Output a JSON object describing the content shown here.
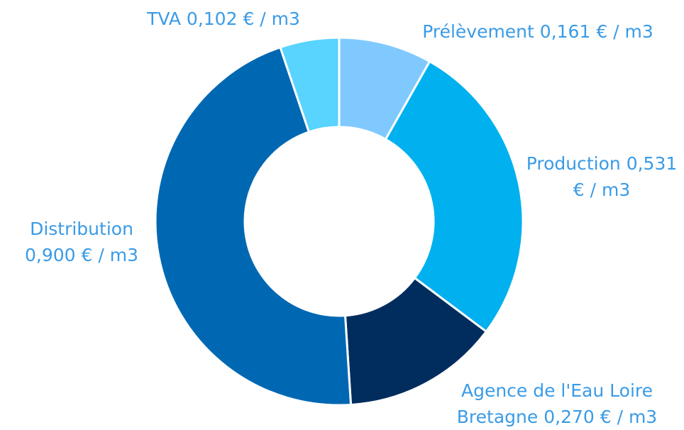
{
  "chart_data": {
    "type": "donut",
    "categories": [
      "Prélèvement",
      "Production",
      "Agence de l'Eau Loire Bretagne",
      "Distribution",
      "TVA"
    ],
    "values": [
      0.161,
      0.531,
      0.27,
      0.9,
      0.102
    ],
    "value_labels": [
      "0,161 € / m3",
      "0,531 € / m3",
      "0,270 € / m3",
      "0,900 € / m3",
      "0,102 € / m3"
    ],
    "colors": [
      "#7fc9ff",
      "#00b0ef",
      "#002d5e",
      "#0068b3",
      "#58d4ff"
    ]
  }
}
